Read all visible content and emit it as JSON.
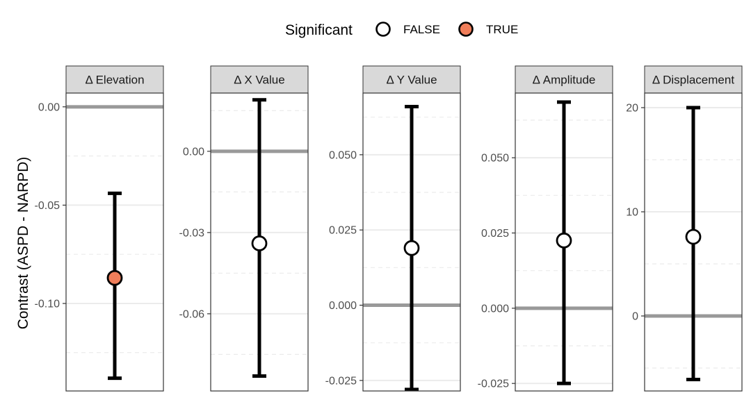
{
  "legend": {
    "title": "Significant",
    "items": [
      {
        "label": "FALSE",
        "fill": "#ffffff"
      },
      {
        "label": "TRUE",
        "fill": "#F07E5A"
      }
    ]
  },
  "colors": {
    "strip_fill": "#D9D9D9",
    "significant_fill": "#F07E5A",
    "nonsignificant_fill": "#ffffff",
    "zero_line": "#999999",
    "grid_major": "#EBEBEB",
    "grid_minor": "#EBEBEB",
    "errorbar": "#000000"
  },
  "chart_data": {
    "type": "errorbar",
    "ylabel": "Contrast (ASPD - NARPD)",
    "legend_position": "top",
    "grid": true,
    "panels": [
      {
        "title": "Δ Elevation",
        "ylim": [
          -0.1445,
          0.007
        ],
        "ticks": [
          0.0,
          -0.05,
          -0.1
        ],
        "tick_labels": [
          "0.00",
          "-0.05",
          "-0.10"
        ],
        "minor_ticks": [
          -0.025,
          -0.075,
          -0.125
        ],
        "estimate": -0.087,
        "lower": -0.138,
        "upper": -0.044,
        "significant": true
      },
      {
        "title": "Δ X Value",
        "ylim": [
          -0.0885,
          0.0215
        ],
        "ticks": [
          0.0,
          -0.03,
          -0.06
        ],
        "tick_labels": [
          "0.00",
          "-0.03",
          "-0.06"
        ],
        "minor_ticks": [
          0.015,
          -0.015,
          -0.045,
          -0.075
        ],
        "estimate": -0.034,
        "lower": -0.083,
        "upper": 0.019,
        "significant": false
      },
      {
        "title": "Δ Y Value",
        "ylim": [
          -0.0285,
          0.0705
        ],
        "ticks": [
          0.05,
          0.025,
          0.0,
          -0.025
        ],
        "tick_labels": [
          "0.050",
          "0.025",
          "0.000",
          "-0.025"
        ],
        "minor_ticks": [
          0.0625,
          0.0375,
          0.0125,
          -0.0125
        ],
        "estimate": 0.019,
        "lower": -0.028,
        "upper": 0.066,
        "significant": false
      },
      {
        "title": "Δ Amplitude",
        "ylim": [
          -0.0275,
          0.0715
        ],
        "ticks": [
          0.05,
          0.025,
          0.0,
          -0.025
        ],
        "tick_labels": [
          "0.050",
          "0.025",
          "0.000",
          "-0.025"
        ],
        "minor_ticks": [
          0.0625,
          0.0375,
          0.0125,
          -0.0125
        ],
        "estimate": 0.0225,
        "lower": -0.025,
        "upper": 0.0685,
        "significant": false
      },
      {
        "title": "Δ Displacement",
        "ylim": [
          -7.2,
          21.4
        ],
        "ticks": [
          20,
          10,
          0
        ],
        "tick_labels": [
          "20",
          "10",
          "0"
        ],
        "minor_ticks": [
          15,
          5,
          -5
        ],
        "estimate": 7.6,
        "lower": -6.1,
        "upper": 20,
        "significant": false
      }
    ]
  }
}
